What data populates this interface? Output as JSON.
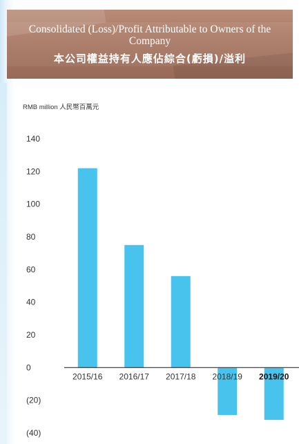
{
  "header": {
    "title_en": "Consolidated (Loss)/Profit Attributable to Owners of the Company",
    "title_zh": "本公司權益持有人應佔綜合(虧損)/溢利"
  },
  "unit_label": "RMB million 人民幣百萬元",
  "colors": {
    "bar": "#47c3ee",
    "axis": "#333333",
    "banner": "#a57561"
  },
  "chart_data": {
    "type": "bar",
    "title": "Consolidated (Loss)/Profit Attributable to Owners of the Company",
    "ylabel": "RMB million 人民幣百萬元",
    "categories": [
      "2015/16",
      "2016/17",
      "2017/18",
      "2018/19",
      "2019/20"
    ],
    "highlight_category": "2019/20",
    "values": [
      122,
      75,
      56,
      -29,
      -32
    ],
    "ylim": [
      -40,
      140
    ],
    "yticks": [
      140,
      120,
      100,
      80,
      60,
      40,
      20,
      0,
      -20,
      -40
    ],
    "ytick_labels": [
      "140",
      "120",
      "100",
      "80",
      "60",
      "40",
      "20",
      "0",
      "(20)",
      "(40)"
    ],
    "grid": false,
    "legend": "none"
  }
}
